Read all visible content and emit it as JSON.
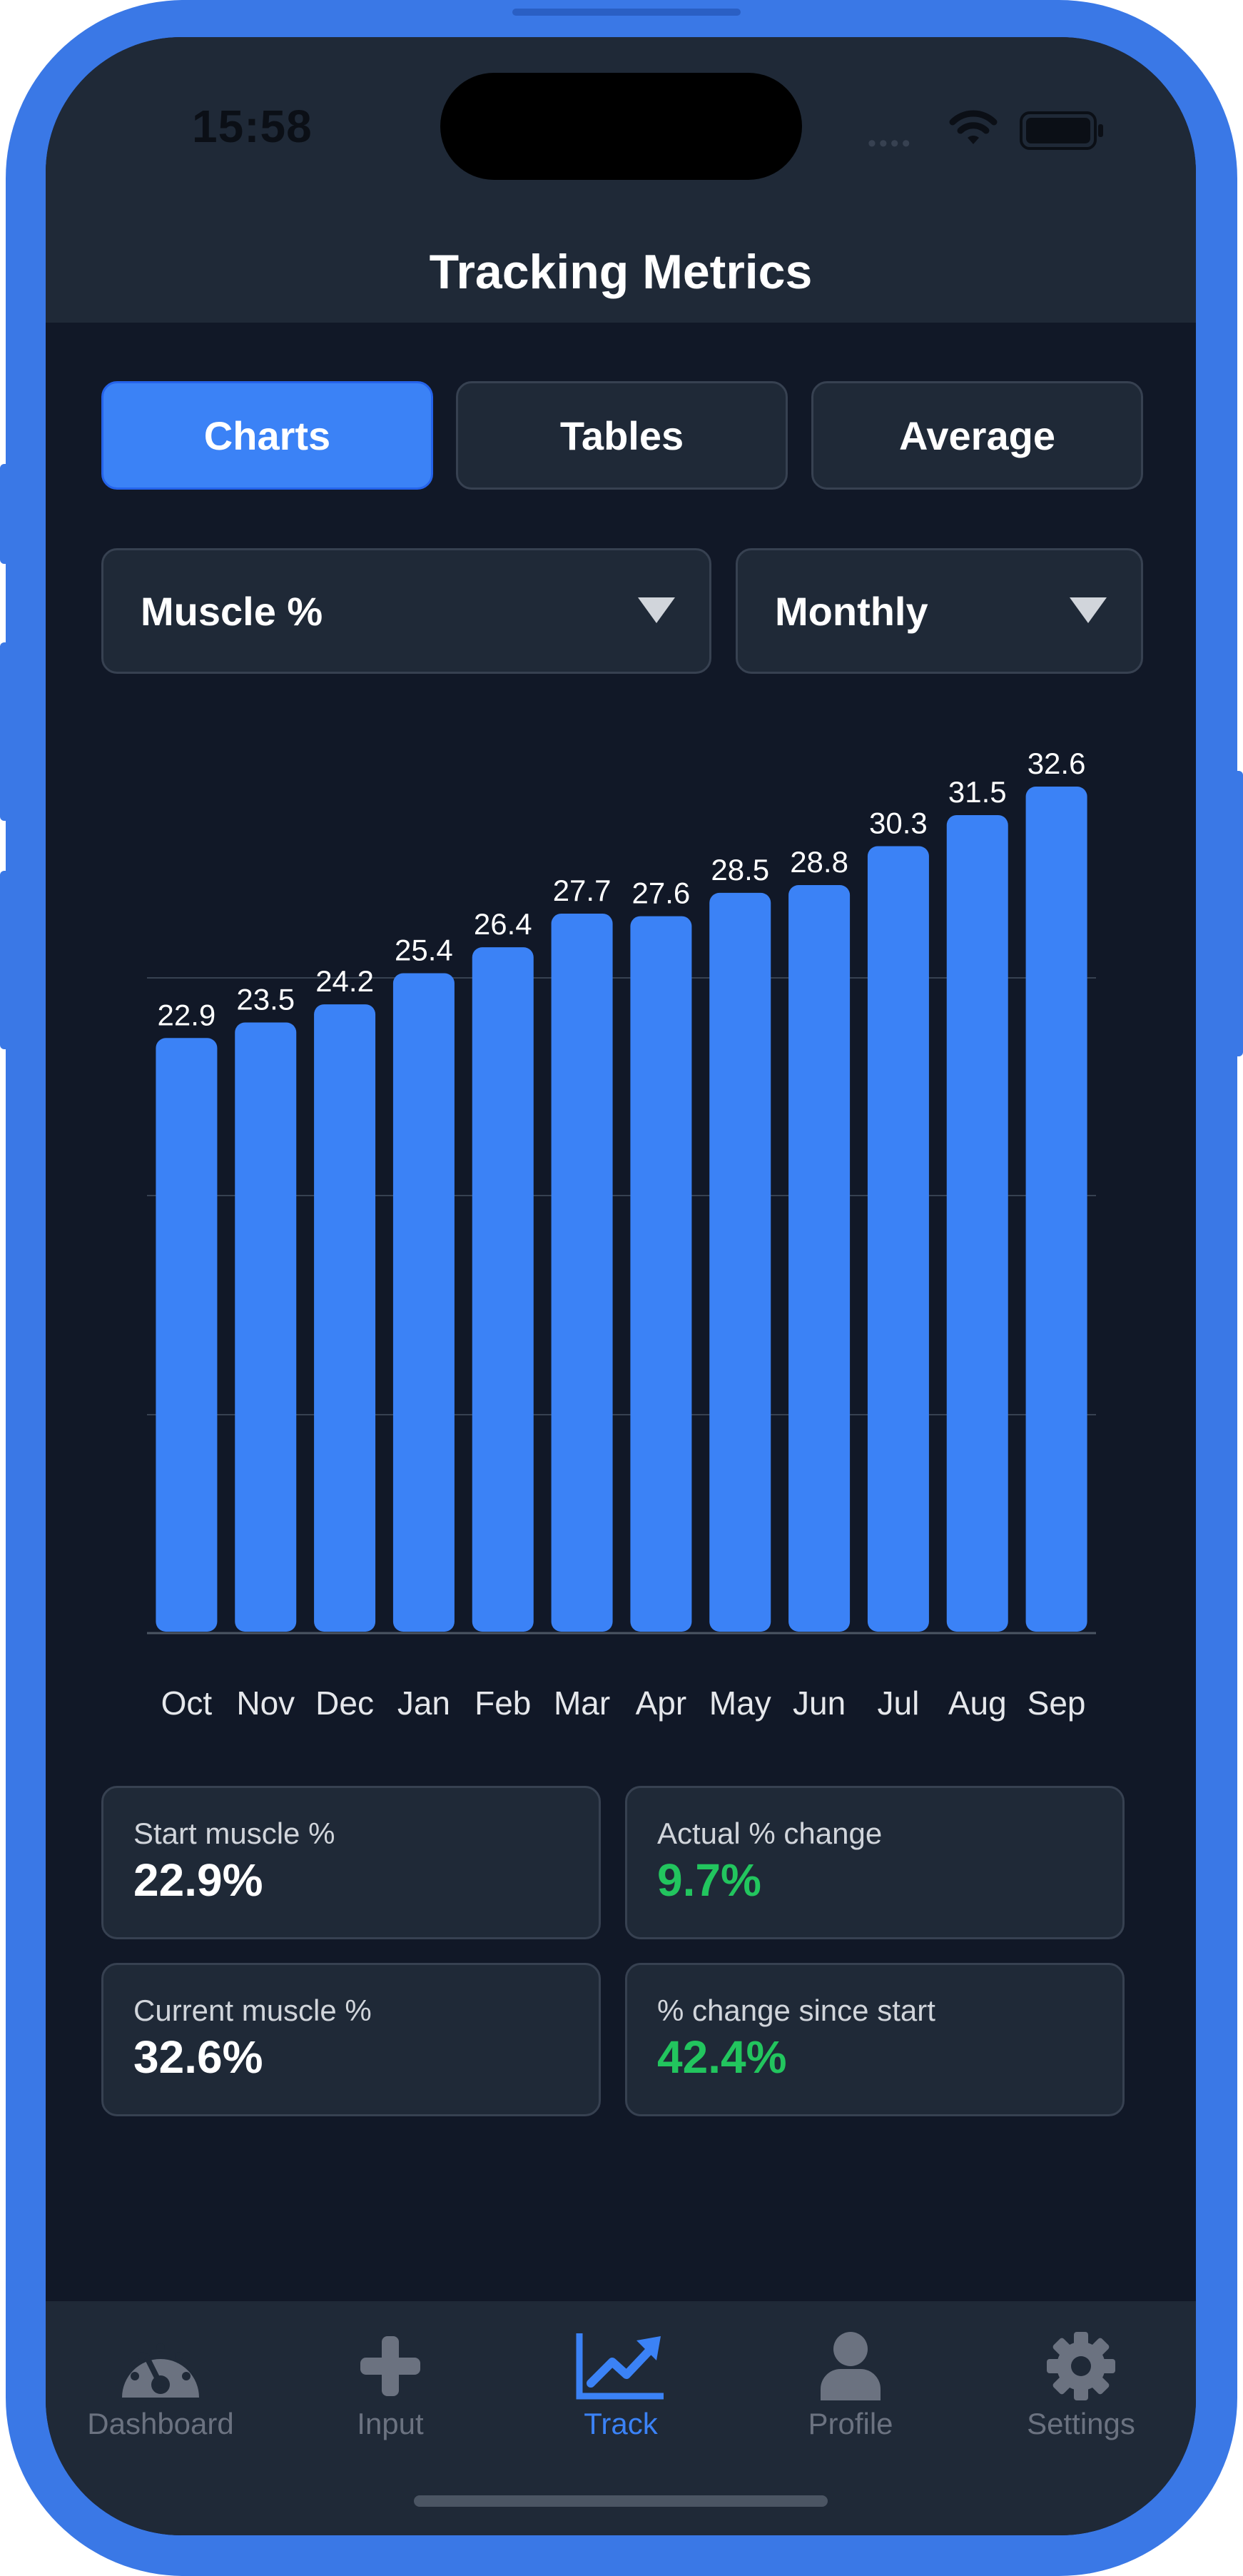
{
  "status_bar": {
    "time": "15:58",
    "signal_dots": "••••"
  },
  "header": {
    "title": "Tracking Metrics"
  },
  "tabs": [
    {
      "label": "Charts",
      "active": true
    },
    {
      "label": "Tables",
      "active": false
    },
    {
      "label": "Average",
      "active": false
    }
  ],
  "filters": {
    "metric": "Muscle %",
    "period": "Monthly"
  },
  "chart_data": {
    "type": "bar",
    "categories": [
      "Oct",
      "Nov",
      "Dec",
      "Jan",
      "Feb",
      "Mar",
      "Apr",
      "May",
      "Jun",
      "Jul",
      "Aug",
      "Sep"
    ],
    "values": [
      22.9,
      23.5,
      24.2,
      25.4,
      26.4,
      27.7,
      27.6,
      28.5,
      28.8,
      30.3,
      31.5,
      32.6
    ],
    "value_labels": [
      "22.9",
      "23.5",
      "24.2",
      "25.4",
      "26.4",
      "27.7",
      "27.6",
      "28.5",
      "28.8",
      "30.3",
      "31.5",
      "32.6"
    ],
    "title": "",
    "xlabel": "",
    "ylabel": "",
    "ylim": [
      0,
      32.6
    ],
    "grid": true,
    "bar_color": "#3b82f6"
  },
  "stats": [
    {
      "label": "Start muscle %",
      "value": "22.9%",
      "color": "#ffffff"
    },
    {
      "label": "Actual % change",
      "value": "9.7%",
      "color": "#22c55e"
    },
    {
      "label": "Current muscle %",
      "value": "32.6%",
      "color": "#ffffff"
    },
    {
      "label": "% change since start",
      "value": "42.4%",
      "color": "#22c55e"
    }
  ],
  "nav": [
    {
      "label": "Dashboard",
      "icon": "dashboard-gauge-icon",
      "active": false
    },
    {
      "label": "Input",
      "icon": "plus-icon",
      "active": false
    },
    {
      "label": "Track",
      "icon": "trending-chart-icon",
      "active": true
    },
    {
      "label": "Profile",
      "icon": "user-icon",
      "active": false
    },
    {
      "label": "Settings",
      "icon": "gear-icon",
      "active": false
    }
  ],
  "colors": {
    "accent": "#3b82f6",
    "positive": "#22c55e",
    "frame": "#3a78e6",
    "background": "#111827",
    "surface": "#1f2937"
  }
}
